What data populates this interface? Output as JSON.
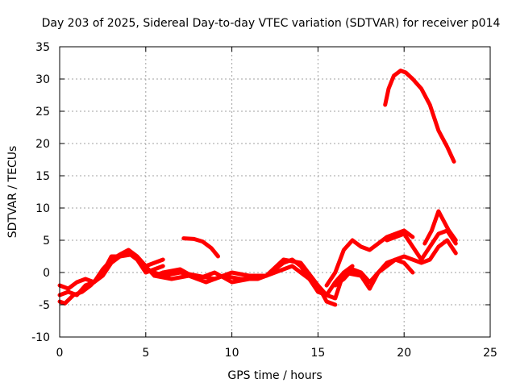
{
  "chart_data": {
    "type": "line",
    "title": "Day 203 of 2025, Sidereal Day-to-day VTEC variation (SDTVAR) for receiver p014",
    "xlabel": "GPS time / hours",
    "ylabel": "SDTVAR / TECUs",
    "xlim": [
      0,
      25
    ],
    "ylim": [
      -10,
      35
    ],
    "xticks": [
      0,
      5,
      10,
      15,
      20,
      25
    ],
    "yticks": [
      -10,
      -5,
      0,
      5,
      10,
      15,
      20,
      25,
      30,
      35
    ],
    "grid": true,
    "color": "#ff0000",
    "series": [
      {
        "name": "trace-1",
        "x": [
          0,
          0.5,
          1.0,
          1.5,
          2.0,
          2.5,
          3.0,
          3.5,
          4.0,
          4.5,
          5.0,
          5.5,
          6.0
        ],
        "y": [
          -3.5,
          -3.0,
          -3.5,
          -2.0,
          -1.5,
          0.5,
          2.0,
          2.8,
          3.5,
          2.5,
          1.0,
          1.5,
          2.0
        ]
      },
      {
        "name": "trace-2",
        "x": [
          0,
          0.5,
          1.0,
          1.5,
          2.0,
          2.5,
          3.0,
          3.5,
          4.0,
          4.5,
          5.0,
          5.5,
          6.0
        ],
        "y": [
          -2.0,
          -2.5,
          -1.5,
          -1.0,
          -1.5,
          -0.5,
          1.5,
          2.5,
          3.0,
          2.0,
          0.0,
          0.5,
          1.0
        ]
      },
      {
        "name": "trace-3",
        "x": [
          0,
          0.3,
          0.8,
          1.3,
          1.8,
          2.5,
          3.0,
          3.5,
          4.2,
          4.8,
          5.5,
          6.0
        ],
        "y": [
          -4.5,
          -4.8,
          -3.5,
          -3.0,
          -2.0,
          0.0,
          2.5,
          2.5,
          2.8,
          1.5,
          -0.5,
          0.0
        ]
      },
      {
        "name": "trace-4",
        "x": [
          5.0,
          6.0,
          7.0,
          8.0,
          9.0,
          10.0,
          11.0,
          12.0,
          13.0,
          13.5,
          14.0,
          14.5,
          15.0,
          15.5,
          16.0,
          16.5,
          17.0
        ],
        "y": [
          0.5,
          -0.5,
          0.0,
          -0.5,
          -1.0,
          0.0,
          -0.5,
          -0.5,
          1.5,
          2.0,
          1.0,
          -1.0,
          -2.0,
          -3.5,
          -4.0,
          0.0,
          1.0
        ]
      },
      {
        "name": "trace-5",
        "x": [
          5.5,
          6.5,
          7.5,
          8.5,
          9.5,
          10.5,
          11.5,
          12.5,
          13.0,
          13.5,
          14.0,
          14.5,
          15.0,
          15.5,
          16.0,
          16.5,
          17.5,
          18.0
        ],
        "y": [
          -0.5,
          -1.0,
          -0.5,
          -1.5,
          -0.5,
          -1.0,
          -1.0,
          0.0,
          0.5,
          1.0,
          0.0,
          -1.0,
          -3.0,
          -3.5,
          -1.5,
          0.0,
          -0.5,
          -2.5
        ]
      },
      {
        "name": "trace-6",
        "x": [
          6.0,
          7.0,
          8.0,
          9.0,
          10.0,
          11.0,
          12.0,
          13.0,
          14.0,
          15.0,
          15.5,
          16.0
        ],
        "y": [
          0.0,
          0.5,
          -1.0,
          0.0,
          -1.5,
          -1.0,
          -0.5,
          2.0,
          1.5,
          -2.0,
          -4.5,
          -5.0
        ]
      },
      {
        "name": "trace-7",
        "x": [
          7.2,
          7.8,
          8.3,
          8.8,
          9.2
        ],
        "y": [
          5.3,
          5.2,
          4.8,
          3.8,
          2.5
        ]
      },
      {
        "name": "trace-8",
        "x": [
          15.5,
          16.0,
          16.5,
          17.0,
          17.5,
          18.0,
          18.5,
          19.0,
          19.5,
          20.0,
          20.5
        ],
        "y": [
          -2.0,
          0.0,
          3.5,
          5.0,
          4.0,
          3.5,
          4.5,
          5.5,
          6.0,
          6.5,
          5.5
        ]
      },
      {
        "name": "trace-9",
        "x": [
          16.0,
          16.5,
          17.0,
          17.5,
          18.0,
          18.5,
          19.0,
          19.5,
          20.0,
          20.5
        ],
        "y": [
          -2.0,
          -1.0,
          0.5,
          0.0,
          -1.5,
          0.0,
          1.5,
          2.0,
          1.5,
          0.0
        ]
      },
      {
        "name": "trace-10",
        "x": [
          16.5,
          17.0,
          17.5,
          18.0,
          18.5,
          19.0,
          19.5,
          20.0,
          20.5,
          21.0,
          21.5,
          22.0,
          22.5,
          23.0
        ],
        "y": [
          -1.0,
          0.5,
          -0.5,
          -2.5,
          0.0,
          1.0,
          2.0,
          2.5,
          2.0,
          1.5,
          2.0,
          4.0,
          5.0,
          3.0
        ]
      },
      {
        "name": "trace-11",
        "x": [
          19.0,
          19.5,
          20.0,
          20.5,
          21.0,
          21.5,
          22.0,
          22.5,
          23.0
        ],
        "y": [
          5.0,
          5.5,
          6.0,
          4.0,
          2.0,
          4.0,
          6.0,
          6.5,
          4.5
        ]
      },
      {
        "name": "trace-12",
        "x": [
          21.2,
          21.6,
          22.0,
          22.3,
          22.6,
          23.0
        ],
        "y": [
          4.5,
          6.5,
          9.5,
          8.0,
          6.5,
          5.0
        ]
      },
      {
        "name": "trace-13",
        "x": [
          18.9,
          19.1,
          19.4,
          19.8,
          20.1,
          20.5,
          21.0,
          21.5,
          22.0,
          22.5,
          22.9
        ],
        "y": [
          26.0,
          28.5,
          30.5,
          31.3,
          31.0,
          30.0,
          28.5,
          26.0,
          22.0,
          19.5,
          17.2
        ]
      }
    ]
  }
}
